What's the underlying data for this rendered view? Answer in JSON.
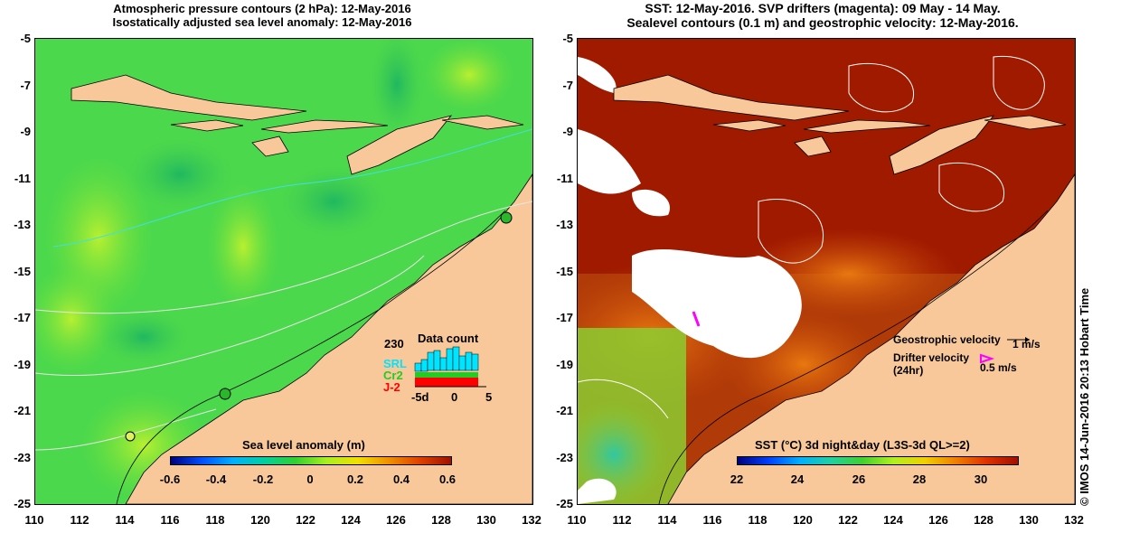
{
  "left_panel": {
    "title_line1": "Atmospheric pressure contours (2 hPa): 12-May-2016",
    "title_line2": "Isostatically adjusted sea level anomaly: 12-May-2016",
    "colorbar_title": "Sea level anomaly (m)",
    "colorbar_ticks": [
      "-0.6",
      "-0.4",
      "-0.2",
      "0",
      "0.2",
      "0.4",
      "0.6"
    ],
    "data_count": {
      "title": "Data count",
      "max_label": "230",
      "series": [
        "SRL",
        "Cr2",
        "J-2"
      ],
      "series_colors": [
        "#00e5ff",
        "#22cc22",
        "#ff0000"
      ],
      "x_ticks": [
        "-5d",
        "0",
        "5"
      ]
    }
  },
  "right_panel": {
    "title_line1": "SST: 12-May-2016. SVP drifters (magenta): 09 May - 14 May.",
    "title_line2": "Sealevel contours (0.1 m) and geostrophic velocity: 12-May-2016.",
    "colorbar_title": "SST (°C) 3d night&day (L3S-3d QL>=2)",
    "colorbar_ticks": [
      "22",
      "24",
      "26",
      "28",
      "30"
    ],
    "geo_velocity_label": "Geostrophic velocity",
    "geo_velocity_scale": "1 m/s",
    "drifter_label_line1": "Drifter velocity",
    "drifter_label_line2": "(24hr)",
    "drifter_scale": "0.5 m/s"
  },
  "y_ticks": [
    "-5",
    "-7",
    "-9",
    "-11",
    "-13",
    "-15",
    "-17",
    "-19",
    "-21",
    "-23",
    "-25"
  ],
  "x_ticks": [
    "110",
    "112",
    "114",
    "116",
    "118",
    "120",
    "122",
    "124",
    "126",
    "128",
    "130",
    "132"
  ],
  "credit": "© IMOS 14-Jun-2016 20:13 Hobart Time",
  "colors": {
    "land": "#f8c89a",
    "ocean_sla": "#44d844",
    "sst_hot": "#a01a00",
    "magenta": "#ff00ff"
  }
}
